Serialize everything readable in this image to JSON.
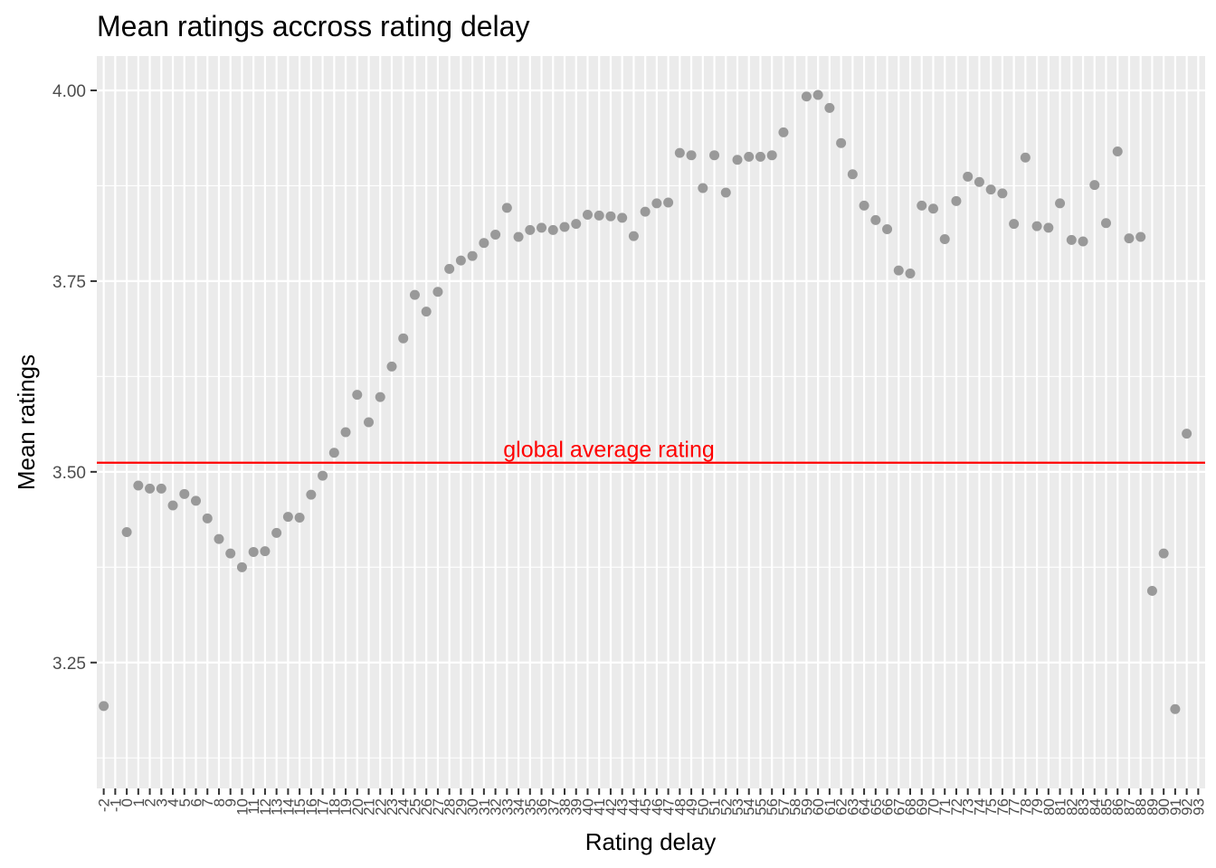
{
  "chart_data": {
    "type": "scatter",
    "title": "Mean ratings accross rating delay",
    "xlabel": "Rating delay",
    "ylabel": "Mean ratings",
    "x_scale": "categorical",
    "y_range": [
      3.085,
      4.045
    ],
    "y_ticks": [
      3.25,
      3.5,
      3.75,
      4.0
    ],
    "y_tick_labels": [
      "3.25",
      "3.50",
      "3.75",
      "4.00"
    ],
    "grid": true,
    "point_color": "#999999",
    "panel_background": "#ebebeb",
    "grid_color": "#ffffff",
    "x_tick_labels": [
      "-2",
      "-1",
      "0",
      "1",
      "2",
      "3",
      "4",
      "5",
      "6",
      "7",
      "8",
      "9",
      "10",
      "11",
      "12",
      "13",
      "14",
      "15",
      "16",
      "17",
      "18",
      "19",
      "20",
      "21",
      "22",
      "23",
      "24",
      "25",
      "26",
      "27",
      "28",
      "29",
      "30",
      "31",
      "32",
      "33",
      "34",
      "35",
      "36",
      "37",
      "38",
      "39",
      "40",
      "41",
      "42",
      "43",
      "44",
      "45",
      "46",
      "47",
      "48",
      "49",
      "50",
      "51",
      "52",
      "53",
      "54",
      "55",
      "56",
      "57",
      "58",
      "59",
      "60",
      "61",
      "62",
      "63",
      "64",
      "65",
      "66",
      "67",
      "68",
      "69",
      "70",
      "71",
      "72",
      "73",
      "74",
      "75",
      "76",
      "77",
      "78",
      "79",
      "80",
      "81",
      "82",
      "83",
      "84",
      "85",
      "86",
      "87",
      "88",
      "89",
      "90",
      "91",
      "92",
      "93"
    ],
    "points": [
      {
        "x": "-2",
        "y": 3.193
      },
      {
        "x": "0",
        "y": 3.421
      },
      {
        "x": "1",
        "y": 3.482
      },
      {
        "x": "2",
        "y": 3.478
      },
      {
        "x": "3",
        "y": 3.478
      },
      {
        "x": "4",
        "y": 3.456
      },
      {
        "x": "5",
        "y": 3.471
      },
      {
        "x": "6",
        "y": 3.462
      },
      {
        "x": "7",
        "y": 3.439
      },
      {
        "x": "8",
        "y": 3.412
      },
      {
        "x": "9",
        "y": 3.393
      },
      {
        "x": "10",
        "y": 3.375
      },
      {
        "x": "11",
        "y": 3.395
      },
      {
        "x": "12",
        "y": 3.396
      },
      {
        "x": "13",
        "y": 3.42
      },
      {
        "x": "14",
        "y": 3.441
      },
      {
        "x": "15",
        "y": 3.44
      },
      {
        "x": "16",
        "y": 3.47
      },
      {
        "x": "17",
        "y": 3.495
      },
      {
        "x": "18",
        "y": 3.525
      },
      {
        "x": "19",
        "y": 3.552
      },
      {
        "x": "20",
        "y": 3.601
      },
      {
        "x": "21",
        "y": 3.565
      },
      {
        "x": "22",
        "y": 3.598
      },
      {
        "x": "23",
        "y": 3.638
      },
      {
        "x": "24",
        "y": 3.675
      },
      {
        "x": "25",
        "y": 3.732
      },
      {
        "x": "26",
        "y": 3.71
      },
      {
        "x": "27",
        "y": 3.736
      },
      {
        "x": "28",
        "y": 3.766
      },
      {
        "x": "29",
        "y": 3.777
      },
      {
        "x": "30",
        "y": 3.783
      },
      {
        "x": "31",
        "y": 3.8
      },
      {
        "x": "32",
        "y": 3.811
      },
      {
        "x": "33",
        "y": 3.846
      },
      {
        "x": "34",
        "y": 3.808
      },
      {
        "x": "35",
        "y": 3.817
      },
      {
        "x": "36",
        "y": 3.82
      },
      {
        "x": "37",
        "y": 3.817
      },
      {
        "x": "38",
        "y": 3.821
      },
      {
        "x": "39",
        "y": 3.825
      },
      {
        "x": "40",
        "y": 3.837
      },
      {
        "x": "41",
        "y": 3.836
      },
      {
        "x": "42",
        "y": 3.835
      },
      {
        "x": "43",
        "y": 3.833
      },
      {
        "x": "44",
        "y": 3.809
      },
      {
        "x": "45",
        "y": 3.841
      },
      {
        "x": "46",
        "y": 3.852
      },
      {
        "x": "47",
        "y": 3.853
      },
      {
        "x": "48",
        "y": 3.918
      },
      {
        "x": "49",
        "y": 3.915
      },
      {
        "x": "50",
        "y": 3.872
      },
      {
        "x": "51",
        "y": 3.915
      },
      {
        "x": "52",
        "y": 3.866
      },
      {
        "x": "53",
        "y": 3.909
      },
      {
        "x": "54",
        "y": 3.913
      },
      {
        "x": "55",
        "y": 3.913
      },
      {
        "x": "56",
        "y": 3.915
      },
      {
        "x": "57",
        "y": 3.945
      },
      {
        "x": "59",
        "y": 3.992
      },
      {
        "x": "60",
        "y": 3.994
      },
      {
        "x": "61",
        "y": 3.977
      },
      {
        "x": "62",
        "y": 3.931
      },
      {
        "x": "63",
        "y": 3.89
      },
      {
        "x": "64",
        "y": 3.849
      },
      {
        "x": "65",
        "y": 3.83
      },
      {
        "x": "66",
        "y": 3.818
      },
      {
        "x": "67",
        "y": 3.764
      },
      {
        "x": "68",
        "y": 3.76
      },
      {
        "x": "69",
        "y": 3.849
      },
      {
        "x": "70",
        "y": 3.845
      },
      {
        "x": "71",
        "y": 3.805
      },
      {
        "x": "72",
        "y": 3.855
      },
      {
        "x": "73",
        "y": 3.887
      },
      {
        "x": "74",
        "y": 3.88
      },
      {
        "x": "75",
        "y": 3.87
      },
      {
        "x": "76",
        "y": 3.865
      },
      {
        "x": "77",
        "y": 3.825
      },
      {
        "x": "78",
        "y": 3.912
      },
      {
        "x": "79",
        "y": 3.822
      },
      {
        "x": "80",
        "y": 3.82
      },
      {
        "x": "81",
        "y": 3.852
      },
      {
        "x": "82",
        "y": 3.804
      },
      {
        "x": "83",
        "y": 3.802
      },
      {
        "x": "84",
        "y": 3.876
      },
      {
        "x": "85",
        "y": 3.826
      },
      {
        "x": "86",
        "y": 3.92
      },
      {
        "x": "87",
        "y": 3.806
      },
      {
        "x": "88",
        "y": 3.808
      },
      {
        "x": "89",
        "y": 3.344
      },
      {
        "x": "90",
        "y": 3.393
      },
      {
        "x": "91",
        "y": 3.189
      },
      {
        "x": "92",
        "y": 3.55
      }
    ],
    "reference_line": {
      "y": 3.512,
      "label": "global average rating",
      "color": "#ff0000"
    }
  }
}
